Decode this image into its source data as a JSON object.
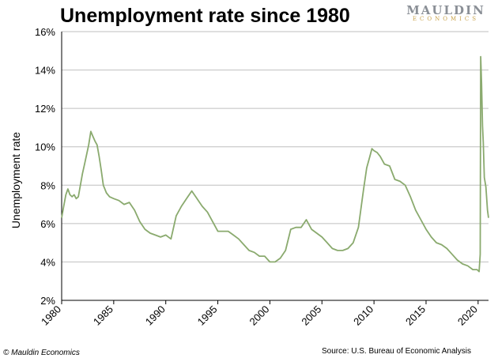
{
  "title": "Unemployment rate since 1980",
  "logo": {
    "top": "MAULDIN",
    "bottom": "ECONOMICS"
  },
  "footer": {
    "left": "© Mauldin Economics",
    "right": "Source: U.S. Bureau of Economic Analysis"
  },
  "colors": {
    "line": "#8aaa6e",
    "grid": "#bfbfbf",
    "axis": "#000000"
  },
  "chart_data": {
    "type": "line",
    "title": "Unemployment rate since 1980",
    "xlabel": "",
    "ylabel": "Unemployment rate",
    "xlim": [
      1980,
      2021.0
    ],
    "ylim": [
      2,
      16
    ],
    "yticks": [
      2,
      4,
      6,
      8,
      10,
      12,
      14,
      16
    ],
    "ytick_labels": [
      "2%",
      "4%",
      "6%",
      "8%",
      "10%",
      "12%",
      "14%",
      "16%"
    ],
    "xticks": [
      1980,
      1985,
      1990,
      1995,
      2000,
      2005,
      2010,
      2015,
      2020
    ],
    "xtick_labels": [
      "1980",
      "1985",
      "1990",
      "1995",
      "2000",
      "2005",
      "2010",
      "2015",
      "2020"
    ],
    "grid": "horizontal",
    "series": [
      {
        "x": [
          1980.0,
          1980.2,
          1980.4,
          1980.6,
          1980.8,
          1981.0,
          1981.2,
          1981.4,
          1981.6,
          1981.8,
          1982.0,
          1982.2,
          1982.4,
          1982.6,
          1982.8,
          1982.95,
          1983.2,
          1983.4,
          1983.6,
          1983.8,
          1984.0,
          1984.3,
          1984.6,
          1985.0,
          1985.5,
          1986.0,
          1986.5,
          1987.0,
          1987.5,
          1988.0,
          1988.5,
          1989.0,
          1989.5,
          1990.0,
          1990.5,
          1991.0,
          1991.5,
          1992.0,
          1992.5,
          1993.0,
          1993.5,
          1994.0,
          1994.5,
          1995.0,
          1995.5,
          1996.0,
          1996.5,
          1997.0,
          1997.5,
          1998.0,
          1998.5,
          1999.0,
          1999.5,
          2000.0,
          2000.5,
          2001.0,
          2001.5,
          2002.0,
          2002.5,
          2003.0,
          2003.5,
          2004.0,
          2004.5,
          2005.0,
          2005.5,
          2006.0,
          2006.5,
          2007.0,
          2007.5,
          2008.0,
          2008.5,
          2009.0,
          2009.3,
          2009.6,
          2009.8,
          2010.0,
          2010.3,
          2010.6,
          2011.0,
          2011.5,
          2012.0,
          2012.5,
          2013.0,
          2013.5,
          2014.0,
          2014.5,
          2015.0,
          2015.5,
          2016.0,
          2016.5,
          2017.0,
          2017.5,
          2018.0,
          2018.5,
          2019.0,
          2019.5,
          2019.9,
          2020.1,
          2020.2,
          2020.25,
          2020.33,
          2020.42,
          2020.5,
          2020.6,
          2020.75,
          2020.9,
          2021.0
        ],
        "y": [
          6.3,
          6.9,
          7.5,
          7.8,
          7.5,
          7.4,
          7.5,
          7.3,
          7.4,
          8.0,
          8.6,
          9.1,
          9.6,
          10.1,
          10.8,
          10.6,
          10.3,
          10.1,
          9.5,
          8.8,
          8.0,
          7.6,
          7.4,
          7.3,
          7.2,
          7.0,
          7.1,
          6.7,
          6.1,
          5.7,
          5.5,
          5.4,
          5.3,
          5.4,
          5.2,
          6.4,
          6.9,
          7.3,
          7.7,
          7.3,
          6.9,
          6.6,
          6.1,
          5.6,
          5.6,
          5.6,
          5.4,
          5.2,
          4.9,
          4.6,
          4.5,
          4.3,
          4.3,
          4.0,
          4.0,
          4.2,
          4.6,
          5.7,
          5.8,
          5.8,
          6.2,
          5.7,
          5.5,
          5.3,
          5.0,
          4.7,
          4.6,
          4.6,
          4.7,
          5.0,
          5.8,
          7.8,
          8.9,
          9.5,
          9.9,
          9.8,
          9.7,
          9.5,
          9.1,
          9.0,
          8.3,
          8.2,
          8.0,
          7.4,
          6.7,
          6.2,
          5.7,
          5.3,
          5.0,
          4.9,
          4.7,
          4.4,
          4.1,
          3.9,
          3.8,
          3.6,
          3.6,
          3.5,
          4.4,
          14.7,
          13.3,
          11.1,
          10.2,
          8.4,
          7.9,
          6.7,
          6.3
        ]
      }
    ]
  }
}
